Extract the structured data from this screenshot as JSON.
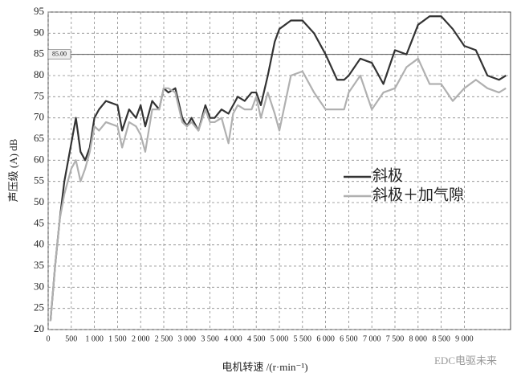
{
  "chart_data": {
    "type": "line",
    "x_label": "电机转速 /(r·min⁻¹)",
    "y_label": "声压级 (A) dB",
    "x": [
      50,
      150,
      250,
      350,
      500,
      600,
      700,
      800,
      900,
      1000,
      1100,
      1250,
      1500,
      1600,
      1750,
      1900,
      2000,
      2100,
      2250,
      2400,
      2500,
      2600,
      2750,
      2900,
      3000,
      3100,
      3250,
      3400,
      3500,
      3600,
      3750,
      3900,
      4000,
      4100,
      4250,
      4400,
      4500,
      4600,
      4750,
      4900,
      5000,
      5250,
      5500,
      5750,
      6000,
      6250,
      6400,
      6500,
      6750,
      7000,
      7250,
      7500,
      7750,
      8000,
      8250,
      8500,
      8750,
      9000,
      9250,
      9500,
      9750,
      9900
    ],
    "series": [
      {
        "name": "斜极",
        "color": "#333333",
        "values": [
          22,
          35,
          46,
          55,
          64,
          70,
          62,
          60,
          63,
          70,
          72,
          74,
          73,
          67,
          72,
          70,
          73,
          68,
          74,
          72,
          77,
          76,
          77,
          70,
          68,
          70,
          67,
          73,
          70,
          70,
          72,
          71,
          73,
          75,
          74,
          76,
          76,
          73,
          80,
          88,
          91,
          93,
          93,
          90,
          85,
          79,
          79,
          80,
          84,
          83,
          78,
          86,
          85,
          92,
          94,
          94,
          91,
          87,
          86,
          80,
          79,
          80
        ]
      },
      {
        "name": "斜极＋加气隙",
        "color": "#b0b0b0",
        "values": [
          22,
          35,
          46,
          52,
          58,
          60,
          55,
          58,
          62,
          68,
          67,
          69,
          68,
          63,
          69,
          68,
          66,
          62,
          72,
          72,
          77,
          77,
          76,
          69,
          68,
          69,
          67,
          72,
          69,
          69,
          70,
          64,
          71,
          73,
          72,
          72,
          75,
          70,
          76,
          71,
          67,
          80,
          81,
          76,
          72,
          72,
          72,
          76,
          80,
          72,
          76,
          77,
          82,
          84,
          78,
          78,
          74,
          77,
          79,
          77,
          76,
          77
        ]
      }
    ],
    "xlim": [
      0,
      10000
    ],
    "xticks": [
      0,
      500,
      {
        "value": 1000,
        "label": "1 000"
      },
      {
        "value": 1500,
        "label": "1 500"
      },
      {
        "value": 2000,
        "label": "2 000"
      },
      {
        "value": 2500,
        "label": "2 500"
      },
      {
        "value": 3000,
        "label": "3 000"
      },
      {
        "value": 3500,
        "label": "3 500"
      },
      {
        "value": 4000,
        "label": "4 000"
      },
      {
        "value": 4500,
        "label": "4 500"
      },
      {
        "value": 5000,
        "label": "5 000"
      },
      {
        "value": 5500,
        "label": "5 500"
      },
      {
        "value": 6000,
        "label": "6 000"
      },
      {
        "value": 6500,
        "label": "6 500"
      },
      {
        "value": 7000,
        "label": "7 000"
      },
      {
        "value": 7500,
        "label": "7 500"
      },
      {
        "value": 8000,
        "label": "8 000"
      },
      {
        "value": 8500,
        "label": "8 500"
      },
      {
        "value": 9000,
        "label": "9 000"
      }
    ],
    "ylim": [
      20,
      95
    ],
    "yticks": [
      20,
      25,
      30,
      35,
      40,
      45,
      50,
      55,
      60,
      65,
      70,
      75,
      80,
      85,
      90,
      95
    ],
    "grid": true,
    "reference_line": {
      "value": 85,
      "label": "85.00"
    },
    "watermark": "EDC电驱未来"
  }
}
